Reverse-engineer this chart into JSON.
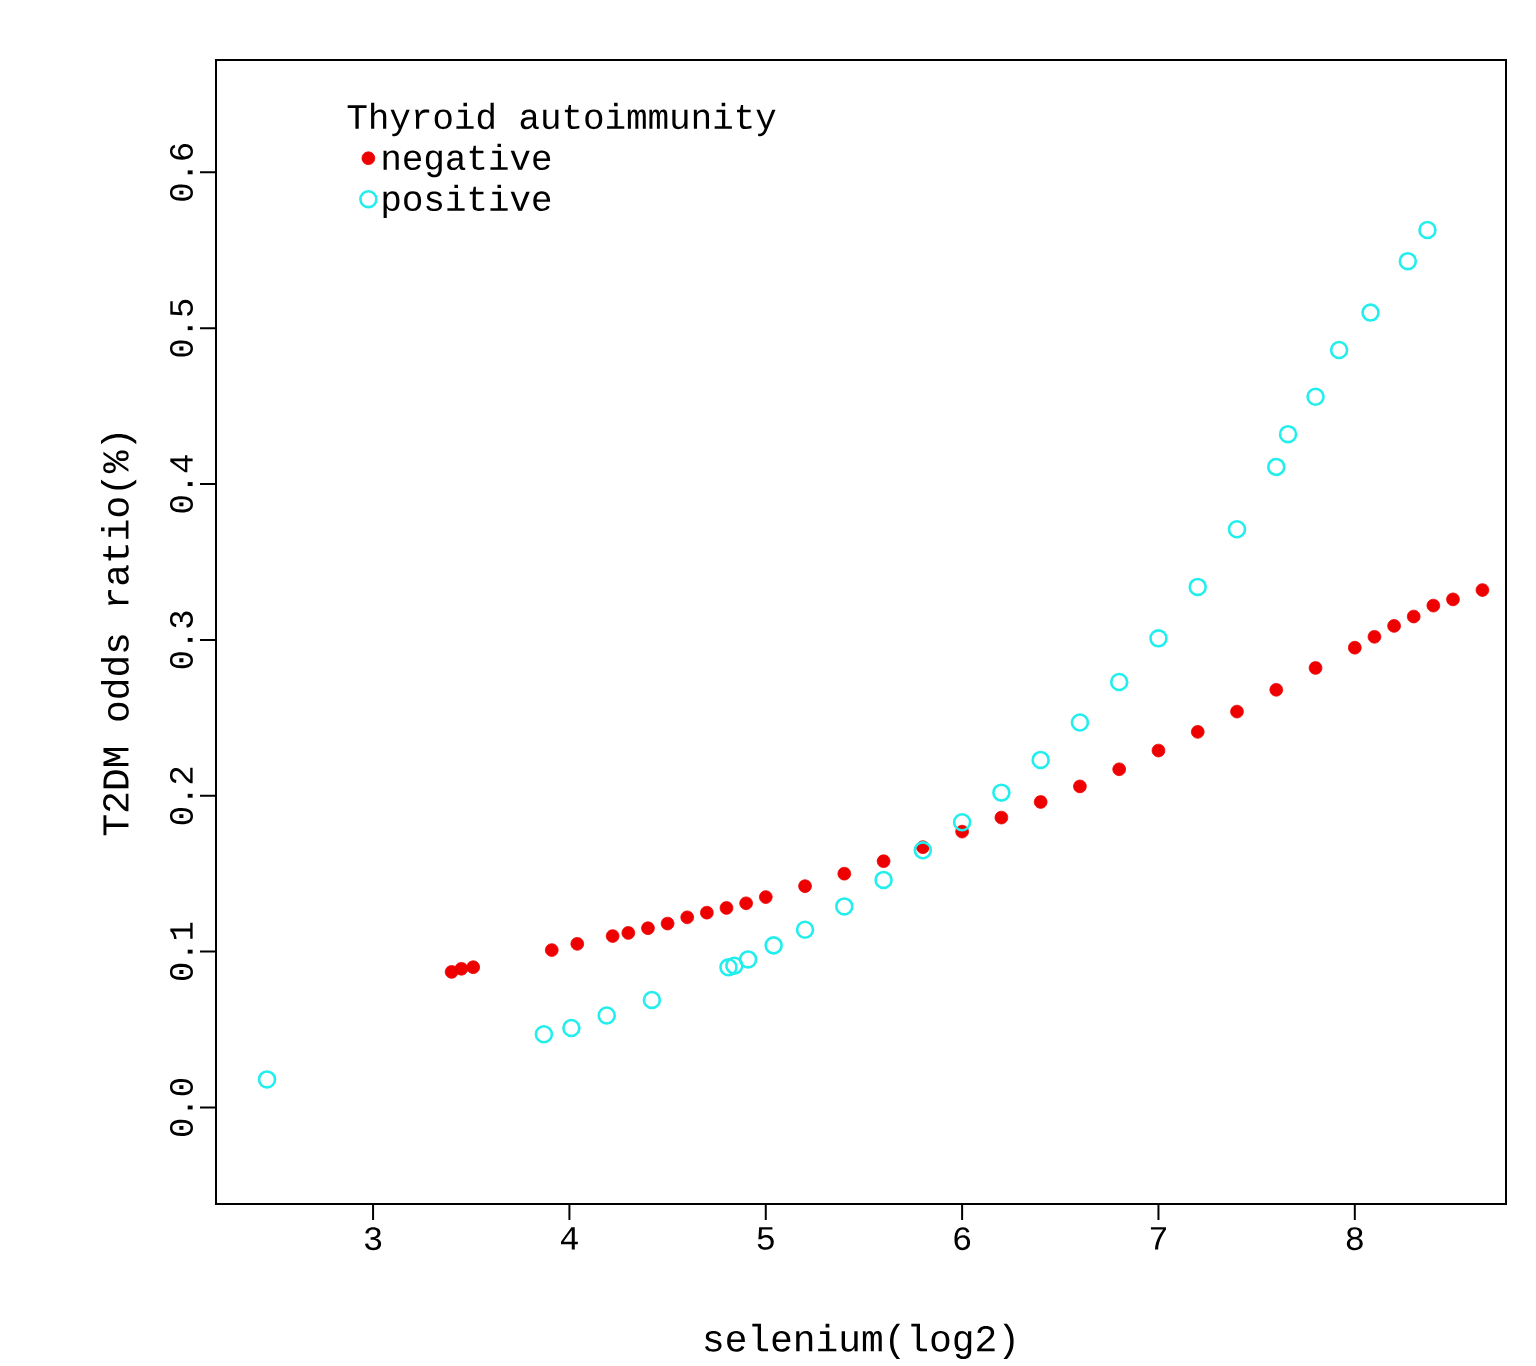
{
  "chart_data": {
    "type": "scatter",
    "xlabel": "selenium(log2)",
    "ylabel": "T2DM odds ratio(%)",
    "legend_title": "Thyroid autoimmunity",
    "legend": "top left",
    "grid": false,
    "xlim": [
      2.2,
      8.77
    ],
    "ylim": [
      -0.062,
      0.672
    ],
    "xticks": [
      3,
      4,
      5,
      6,
      7,
      8
    ],
    "yticks": [
      {
        "value": 0,
        "label": "0.0"
      },
      {
        "value": 0.1,
        "label": "0.1"
      },
      {
        "value": 0.2,
        "label": "0.2"
      },
      {
        "value": 0.3,
        "label": "0.3"
      },
      {
        "value": 0.4,
        "label": "0.4"
      },
      {
        "value": 0.5,
        "label": "0.5"
      },
      {
        "value": 0.6,
        "label": "0.6"
      }
    ],
    "series": [
      {
        "name": "negative",
        "color": "#ee0000",
        "marker": "circle",
        "x": [
          3.4,
          3.45,
          3.51,
          3.91,
          4.04,
          4.22,
          4.3,
          4.4,
          4.5,
          4.6,
          4.7,
          4.8,
          4.9,
          5.0,
          5.2,
          5.4,
          5.6,
          5.8,
          6.0,
          6.2,
          6.4,
          6.6,
          6.8,
          7.0,
          7.2,
          7.4,
          7.6,
          7.8,
          8.0,
          8.1,
          8.2,
          8.3,
          8.4,
          8.5,
          8.65
        ],
        "values": [
          0.087,
          0.089,
          0.09,
          0.101,
          0.105,
          0.11,
          0.112,
          0.115,
          0.118,
          0.122,
          0.125,
          0.128,
          0.131,
          0.135,
          0.142,
          0.15,
          0.158,
          0.167,
          0.177,
          0.186,
          0.196,
          0.206,
          0.217,
          0.229,
          0.241,
          0.254,
          0.268,
          0.282,
          0.295,
          0.302,
          0.309,
          0.315,
          0.322,
          0.326,
          0.332
        ]
      },
      {
        "name": "positive",
        "color": "#22eeee",
        "marker": "open circle",
        "x": [
          2.46,
          3.87,
          4.01,
          4.19,
          4.42,
          4.81,
          4.84,
          4.91,
          5.04,
          5.2,
          5.4,
          5.6,
          5.8,
          6.0,
          6.2,
          6.4,
          6.6,
          6.8,
          7.0,
          7.2,
          7.4,
          7.6,
          7.66,
          7.8,
          7.92,
          8.08,
          8.27,
          8.37
        ],
        "values": [
          0.018,
          0.047,
          0.051,
          0.059,
          0.069,
          0.09,
          0.091,
          0.095,
          0.104,
          0.114,
          0.129,
          0.146,
          0.165,
          0.183,
          0.202,
          0.223,
          0.247,
          0.273,
          0.301,
          0.334,
          0.371,
          0.411,
          0.432,
          0.456,
          0.486,
          0.51,
          0.543,
          0.563
        ]
      }
    ]
  }
}
